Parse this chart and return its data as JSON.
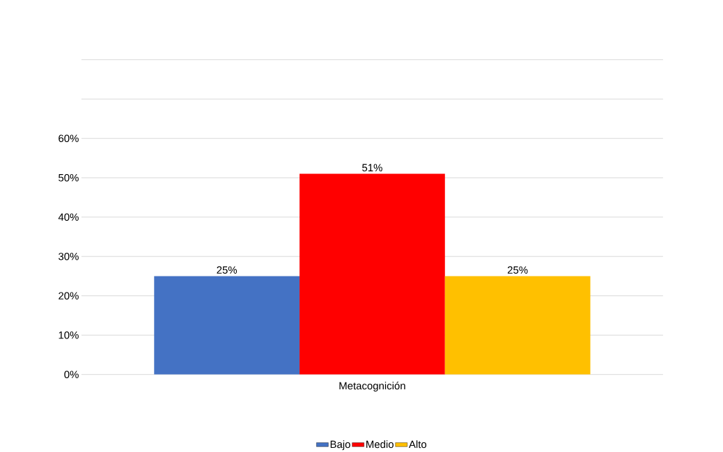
{
  "chart_data": {
    "type": "bar",
    "xlabel": "Metacognición",
    "categories": [
      null
    ],
    "series": [
      {
        "name": "Bajo",
        "color": "#4472c4",
        "values": [
          25
        ],
        "value_labels": [
          "25%"
        ]
      },
      {
        "name": "Medio",
        "color": "#ff0000",
        "values": [
          51
        ],
        "value_labels": [
          "51%"
        ]
      },
      {
        "name": "Alto",
        "color": "#ffc000",
        "values": [
          25
        ],
        "value_labels": [
          "25%"
        ]
      }
    ],
    "ylim": [
      0,
      80
    ],
    "yticks": [
      {
        "value": 0,
        "label": "0%"
      },
      {
        "value": 10,
        "label": "10%"
      },
      {
        "value": 20,
        "label": "20%"
      },
      {
        "value": 30,
        "label": "30%"
      },
      {
        "value": 40,
        "label": "40%"
      },
      {
        "value": 50,
        "label": "50%"
      },
      {
        "value": 60,
        "label": "60%"
      },
      {
        "value": 70,
        "label": null
      },
      {
        "value": 80,
        "label": null
      }
    ],
    "grid": "y",
    "legend": "bottom"
  }
}
